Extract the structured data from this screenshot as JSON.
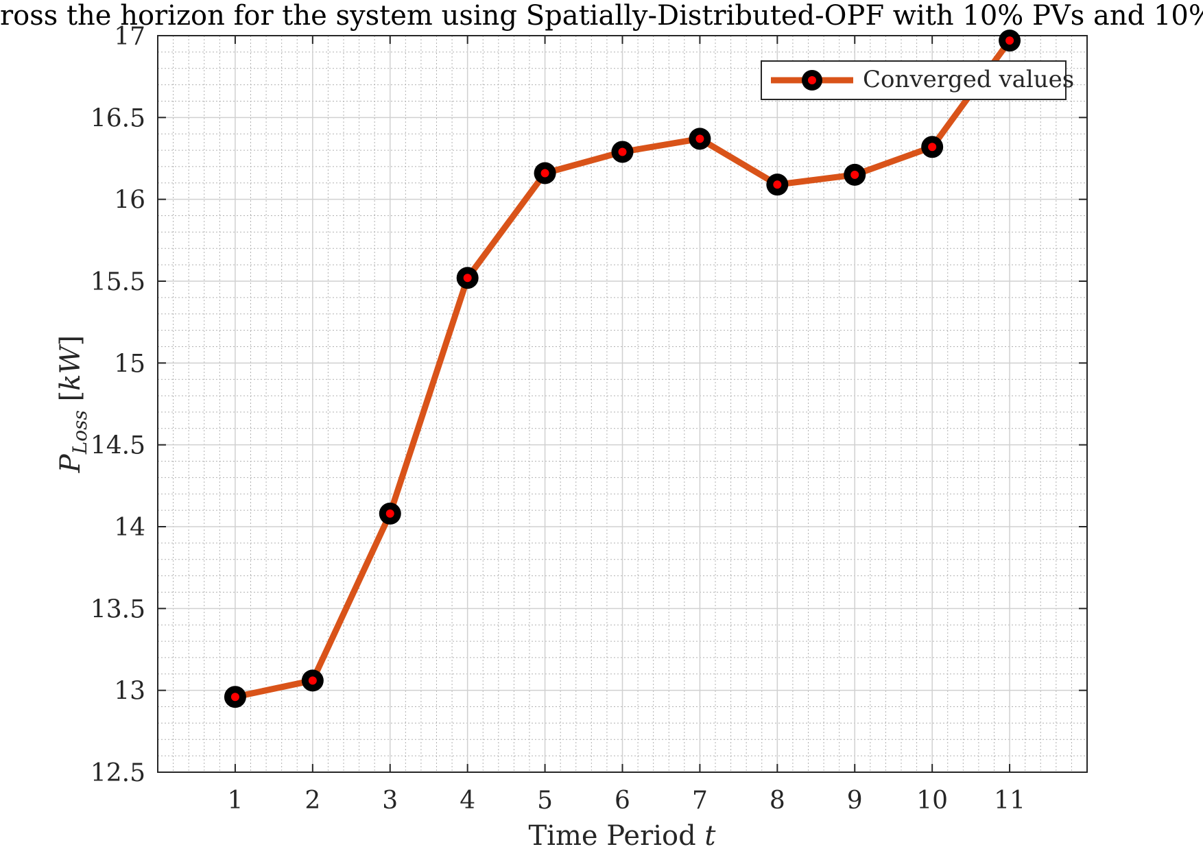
{
  "chart_data": {
    "type": "line",
    "title": "ross the horizon for the system using Spatially-Distributed-OPF with 10% PVs and 10%",
    "xlabel": "Time Period t",
    "ylabel": "P_Loss [kW]",
    "ylabel_main": "P",
    "ylabel_sub": "Loss",
    "ylabel_unit": "[kW]",
    "x": [
      1,
      2,
      3,
      4,
      5,
      6,
      7,
      8,
      9,
      10,
      11
    ],
    "xlim": [
      0,
      12
    ],
    "ylim": [
      12.5,
      17
    ],
    "xticks": [
      "1",
      "2",
      "3",
      "4",
      "5",
      "6",
      "7",
      "8",
      "9",
      "10",
      "11"
    ],
    "yticks": [
      "12.5",
      "13",
      "13.5",
      "14",
      "14.5",
      "15",
      "15.5",
      "16",
      "16.5",
      "17"
    ],
    "grid": true,
    "minor_grid": true,
    "legend_position": "top-right",
    "series": [
      {
        "name": "Converged values",
        "values": [
          12.96,
          13.06,
          14.08,
          15.52,
          16.16,
          16.29,
          16.37,
          16.09,
          16.15,
          16.32,
          16.97
        ],
        "line_color": "#D95319",
        "marker_edge_color": "#000000",
        "marker_face_color": "#FF0000"
      }
    ]
  }
}
